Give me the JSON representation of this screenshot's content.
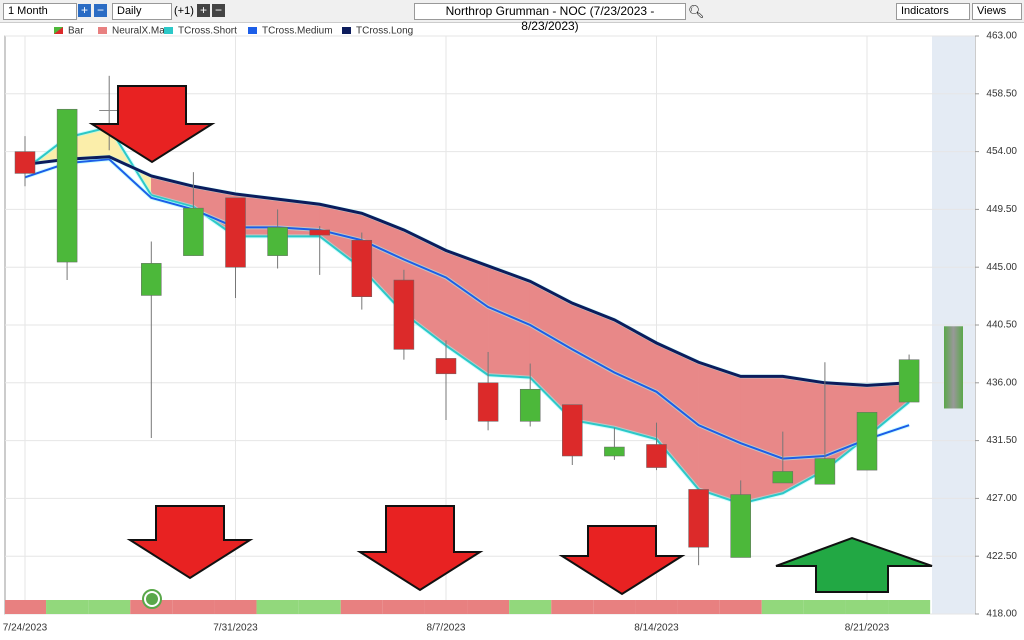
{
  "toolbar": {
    "period": "1 Month",
    "interval": "Daily",
    "offset": "(+1)",
    "title": "Northrop Grumman - NOC (7/23/2023 - 8/23/2023)",
    "indicators": "Indicators",
    "views": "Views"
  },
  "chart_data": {
    "type": "candlestick",
    "categories": [
      "7/24/2023",
      null,
      null,
      null,
      null,
      "7/31/2023",
      null,
      null,
      null,
      null,
      "8/7/2023",
      null,
      null,
      null,
      null,
      "8/14/2023",
      null,
      null,
      null,
      null,
      "8/21/2023",
      null
    ],
    "ylim": [
      418,
      463
    ],
    "yticks": [
      {
        "value": 418,
        "label": "418.00"
      },
      {
        "value": 422.5,
        "label": "422.50"
      },
      {
        "value": 427,
        "label": "427.00"
      },
      {
        "value": 431.5,
        "label": "431.50"
      },
      {
        "value": 436,
        "label": "436.00"
      },
      {
        "value": 440.5,
        "label": "440.50"
      },
      {
        "value": 445,
        "label": "445.00"
      },
      {
        "value": 449.5,
        "label": "449.50"
      },
      {
        "value": 454,
        "label": "454.00"
      },
      {
        "value": 458.5,
        "label": "458.50"
      },
      {
        "value": 463,
        "label": "463.00"
      }
    ],
    "grid": true,
    "series": [
      {
        "name": "Bar",
        "up_color": "#4cb83a",
        "down_color": "#dc2a2a",
        "open": [
          454.0,
          445.4,
          457.2,
          442.8,
          445.9,
          450.4,
          445.9,
          447.9,
          447.1,
          444.0,
          437.9,
          436.0,
          433.0,
          434.3,
          430.3,
          431.2,
          427.7,
          422.4,
          428.2,
          428.1,
          429.2,
          434.5
        ],
        "high": [
          455.2,
          457.3,
          459.9,
          447.0,
          452.4,
          450.4,
          449.5,
          448.2,
          447.7,
          444.8,
          439.3,
          438.4,
          437.5,
          434.3,
          432.5,
          432.9,
          427.7,
          428.4,
          432.2,
          437.6,
          433.7,
          438.2
        ],
        "low": [
          451.3,
          444.0,
          454.1,
          431.7,
          445.9,
          442.6,
          444.9,
          444.4,
          441.7,
          437.8,
          433.1,
          432.3,
          432.6,
          429.6,
          430.0,
          429.2,
          421.8,
          422.4,
          428.2,
          428.1,
          429.2,
          434.5
        ],
        "close": [
          452.3,
          457.3,
          457.2,
          445.3,
          449.6,
          445.0,
          448.1,
          447.5,
          442.7,
          438.6,
          436.7,
          433.0,
          435.5,
          430.3,
          431.0,
          429.4,
          423.2,
          427.3,
          429.1,
          430.1,
          433.7,
          437.8
        ]
      },
      {
        "name": "NeuralX.Max",
        "colors": [
          "#e88080",
          "#92d87c",
          "#92d87c",
          "#e88080",
          "#e88080",
          "#e88080",
          "#92d87c",
          "#92d87c",
          "#e88080",
          "#e88080",
          "#e88080",
          "#e88080",
          "#92d87c",
          "#e88080",
          "#e88080",
          "#e88080",
          "#e88080",
          "#e88080",
          "#92d87c",
          "#92d87c",
          "#92d87c",
          "#92d87c"
        ]
      },
      {
        "name": "TCross.Short",
        "color": "#2cc8c8",
        "values": [
          452.6,
          455.1,
          455.9,
          450.6,
          449.7,
          447.4,
          447.4,
          447.4,
          444.9,
          441.4,
          438.9,
          436.6,
          436.4,
          433.1,
          432.5,
          431.6,
          427.7,
          426.6,
          427.4,
          429.2,
          431.8,
          434.5
        ]
      },
      {
        "name": "TCross.Medium",
        "color": "#1c5ee8",
        "values": [
          452.0,
          453.1,
          453.4,
          450.4,
          449.5,
          448.1,
          448.1,
          447.9,
          447.1,
          445.6,
          444.2,
          441.9,
          440.5,
          438.6,
          436.8,
          435.3,
          432.7,
          431.3,
          430.1,
          430.3,
          431.6,
          432.7
        ]
      },
      {
        "name": "TCross.Long",
        "color": "#0c1c5c",
        "values": [
          453.0,
          453.4,
          453.6,
          452.1,
          451.3,
          450.7,
          450.3,
          449.9,
          449.2,
          447.9,
          446.3,
          445.1,
          443.9,
          442.2,
          440.9,
          439.1,
          437.6,
          436.5,
          436.5,
          436.0,
          435.8,
          436.0
        ]
      }
    ],
    "forecast": {
      "high": 440.4,
      "low": 434.0
    }
  }
}
